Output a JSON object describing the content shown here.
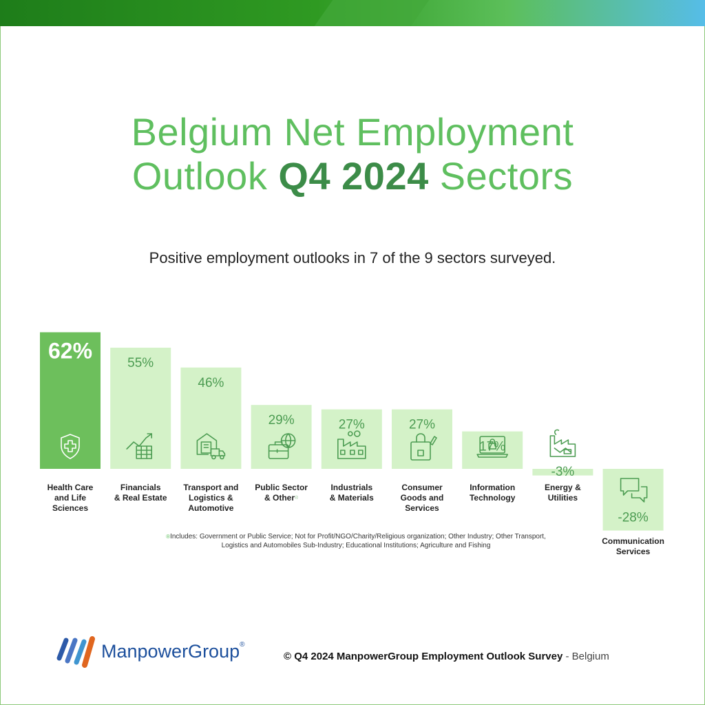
{
  "title": {
    "line1": "Belgium Net Employment",
    "line2_pre": "Outlook",
    "line2_bold": "Q4 2024",
    "line2_post": "Sectors"
  },
  "subtitle": "Positive employment outlooks in 7 of the 9 sectors surveyed.",
  "colors": {
    "highlight_bar": "#6dbf5c",
    "bar": "#d4f2c8",
    "label": "#4c9c52",
    "icon": "#4c9c52",
    "title": "#5fbf5f",
    "title_bold": "#3c8c48"
  },
  "chart_data": {
    "type": "bar",
    "categories": [
      "Health Care\nand Life\nSciences",
      "Financials\n& Real Estate",
      "Transport and\nLogistics &\nAutomotive",
      "Public Sector\n& Other",
      "Industrials\n& Materials",
      "Consumer\nGoods and\nServices",
      "Information\nTechnology",
      "Energy &\nUtilities",
      "Communication\nServices"
    ],
    "values": [
      62,
      55,
      46,
      29,
      27,
      27,
      17,
      -3,
      -28
    ],
    "value_labels": [
      "62%",
      "55%",
      "46%",
      "29%",
      "27%",
      "27%",
      "17%",
      "-3%",
      "-28%"
    ],
    "icons": [
      "shield-cross-icon",
      "chart-growth-icon",
      "warehouse-truck-icon",
      "briefcase-globe-icon",
      "factory-icon",
      "shopping-bag-icon",
      "laptop-lock-icon",
      "power-plant-icon",
      "chat-bubbles-icon"
    ],
    "highlight_index": 0,
    "footnote_marker_index": 3,
    "grid": false
  },
  "footnote": "Includes: Government or Public Service; Not for Profit/NGO/Charity/Religious organization; Other Industry; Other Transport, Logistics and Automobiles Sub-Industry; Educational Institutions; Agriculture and Fishing",
  "footnote_marker": "®",
  "logo_text": "ManpowerGroup",
  "logo_mark": "®",
  "copyright": {
    "source": "© Q4 2024 ManpowerGroup Employment Outlook Survey",
    "region": "- Belgium"
  }
}
